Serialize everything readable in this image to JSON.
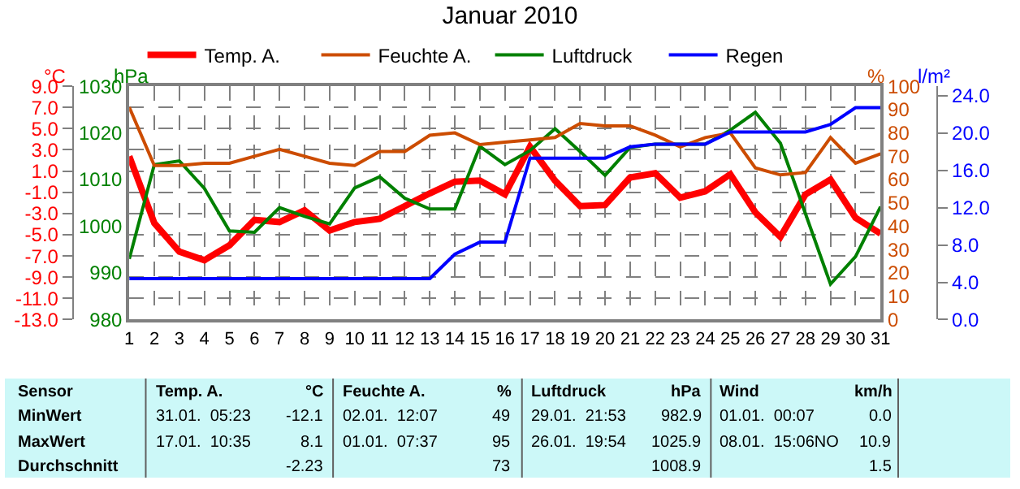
{
  "chart_data": [
    {
      "type": "line",
      "title": "Januar 2010",
      "x": [
        1,
        2,
        3,
        4,
        5,
        6,
        7,
        8,
        9,
        10,
        11,
        12,
        13,
        14,
        15,
        16,
        17,
        18,
        19,
        20,
        21,
        22,
        23,
        24,
        25,
        26,
        27,
        28,
        29,
        30,
        31
      ],
      "series": [
        {
          "name": "Temp. A.",
          "color": "#ff0000",
          "values": [
            2.4,
            -3.9,
            -6.6,
            -7.4,
            -6.0,
            -3.6,
            -3.8,
            -2.7,
            -4.6,
            -3.8,
            -3.5,
            -2.3,
            -1.1,
            0.0,
            0.1,
            -1.2,
            3.3,
            0.1,
            -2.3,
            -2.2,
            0.4,
            0.8,
            -1.5,
            -0.9,
            0.7,
            -2.9,
            -5.2,
            -1.2,
            0.2,
            -3.4,
            -4.9
          ]
        },
        {
          "name": "Feuchte A.",
          "color": "#cc4c00",
          "axis": "y3",
          "values": [
            91,
            66,
            66,
            67,
            67,
            70,
            73,
            70,
            67,
            66,
            72,
            72,
            79,
            80,
            75,
            76,
            77,
            78,
            84,
            83,
            83,
            79,
            74,
            78,
            80,
            65,
            62,
            63,
            78,
            67,
            71
          ]
        },
        {
          "name": "Luftdruck",
          "color": "#008000",
          "axis": "y2",
          "values": [
            993.0,
            1013.2,
            1014.0,
            1008.1,
            999.0,
            998.7,
            1004.0,
            1002.1,
            1000.5,
            1008.2,
            1010.6,
            1006.0,
            1003.7,
            1003.7,
            1017.1,
            1013.2,
            1016.2,
            1020.9,
            1016.0,
            1010.9,
            1016.9,
            1017.6,
            1017.6,
            1017.6,
            1020.6,
            1024.4,
            1017.8,
            1002.7,
            987.6,
            993.5,
            1004.2
          ]
        }
      ],
      "xlim": [
        1,
        31
      ],
      "xticks": [
        1,
        2,
        3,
        4,
        5,
        6,
        7,
        8,
        9,
        10,
        11,
        12,
        13,
        14,
        15,
        16,
        17,
        18,
        19,
        20,
        21,
        22,
        23,
        24,
        25,
        26,
        27,
        28,
        29,
        30,
        31
      ],
      "ylabel": "°C",
      "ylim": [
        -13,
        9
      ],
      "yticks": [
        {
          "value": -13,
          "label": "-13.0"
        },
        {
          "value": -11,
          "label": "-11.0"
        },
        {
          "value": -9,
          "label": "-9.0"
        },
        {
          "value": -7,
          "label": "-7.0"
        },
        {
          "value": -5,
          "label": "-5.0"
        },
        {
          "value": -3,
          "label": "-3.0"
        },
        {
          "value": -1,
          "label": "-1.0"
        },
        {
          "value": 1,
          "label": "1.0"
        },
        {
          "value": 3,
          "label": "3.0"
        },
        {
          "value": 5,
          "label": "5.0"
        },
        {
          "value": 7,
          "label": "7.0"
        },
        {
          "value": 9,
          "label": "9.0"
        }
      ],
      "y2label": "hPa",
      "y2lim": [
        980,
        1030
      ],
      "y2ticks": [
        980,
        990,
        1000,
        1010,
        1020,
        1030
      ],
      "y3label": "%",
      "y3lim": [
        0,
        100
      ],
      "y3ticks": [
        0,
        10,
        20,
        30,
        40,
        50,
        60,
        70,
        80,
        90,
        100
      ],
      "grid": true,
      "legend": "top",
      "marker": "none",
      "line_style": "solid",
      "annotations": [
        "Sensor",
        "Temp. A.",
        "°C",
        "Feuchte A.",
        "%",
        "Luftdruck",
        "hPa",
        "Wind",
        "km/h",
        "MinWert",
        "31.01.  05:23",
        "-12.1",
        "02.01.  12:07",
        "49",
        "29.01.  21:53",
        "982.9",
        "01.01.  00:07",
        "0.0",
        "MaxWert",
        "17.01.  10:35",
        "8.1",
        "01.01.  07:37",
        "95",
        "26.01.  19:54",
        "1025.9",
        "08.01.  15:06NO",
        "10.9",
        "Durchschnitt",
        "-2.23",
        "73",
        "1008.9",
        "1.5"
      ]
    },
    {
      "type": "line",
      "x": [
        1,
        2,
        3,
        4,
        5,
        6,
        7,
        8,
        9,
        10,
        11,
        12,
        13,
        14,
        15,
        16,
        17,
        18,
        19,
        20,
        21,
        22,
        23,
        24,
        25,
        26,
        27,
        28,
        29,
        30,
        31
      ],
      "series": [
        {
          "name": "Regen",
          "color": "#0000ff",
          "values": [
            4.4,
            4.4,
            4.4,
            4.4,
            4.4,
            4.4,
            4.4,
            4.4,
            4.4,
            4.4,
            4.4,
            4.4,
            4.4,
            7.0,
            8.3,
            8.3,
            17.3,
            17.3,
            17.3,
            17.3,
            18.5,
            18.8,
            18.8,
            18.8,
            20.1,
            20.1,
            20.1,
            20.1,
            20.9,
            22.7,
            22.7
          ]
        }
      ],
      "xlim": [
        1,
        31
      ],
      "tick_labels": "y",
      "ylabel": "l/m²",
      "ylim": [
        0,
        25
      ],
      "yticks": [
        {
          "value": 0,
          "label": "0.0"
        },
        {
          "value": 4,
          "label": "4.0"
        },
        {
          "value": 8,
          "label": "8.0"
        },
        {
          "value": 12,
          "label": "12.0"
        },
        {
          "value": 16,
          "label": "16.0"
        },
        {
          "value": 20,
          "label": "20.0"
        },
        {
          "value": 24,
          "label": "24.0"
        }
      ],
      "legend": "top",
      "marker": "none",
      "line_style": "solid"
    }
  ]
}
